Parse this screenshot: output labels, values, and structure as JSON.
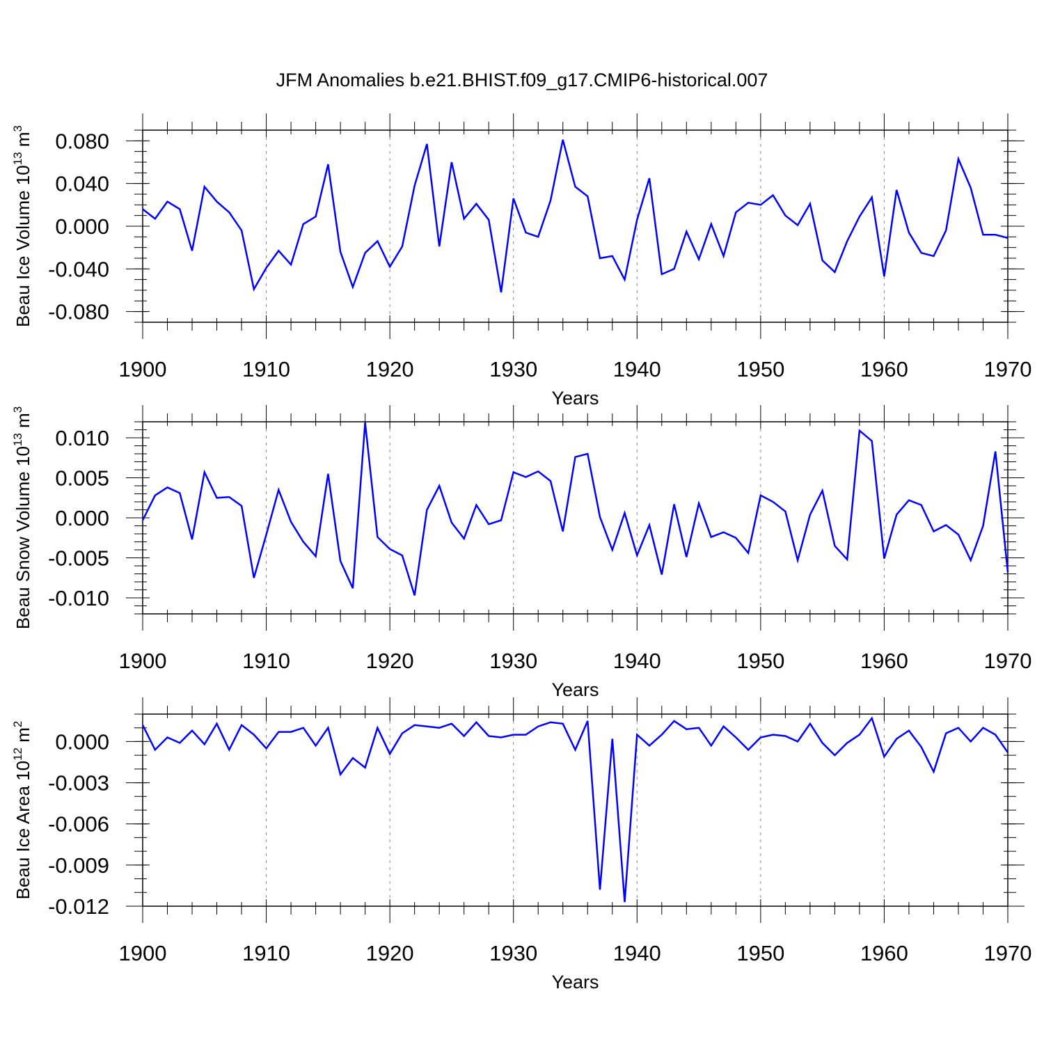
{
  "figure": {
    "title": "JFM Anomalies b.e21.BHIST.f09_g17.CMIP6-historical.007",
    "line_color": "#0000ff",
    "grid_color": "#888888"
  },
  "chart_data": [
    {
      "type": "line",
      "ylabel": "Beau Ice Volume 10",
      "ylabel_exp": "13",
      "ylabel_unit": " m",
      "ylabel_unit_exp": "3",
      "xlabel": "Years",
      "xlim": [
        1900,
        1970
      ],
      "ylim": [
        -0.09,
        0.09
      ],
      "yticks": [
        -0.08,
        -0.04,
        0.0,
        0.04,
        0.08
      ],
      "ytick_labels": [
        "-0.080",
        "-0.040",
        "0.000",
        "0.040",
        "0.080"
      ],
      "yminor_step": 0.01,
      "xticks": [
        1900,
        1910,
        1920,
        1930,
        1940,
        1950,
        1960,
        1970
      ],
      "xtick_labels": [
        "1900",
        "1910",
        "1920",
        "1930",
        "1940",
        "1950",
        "1960",
        "1970"
      ],
      "grid": "vertical dashed at decades",
      "x_start": 1900,
      "values": [
        0.016,
        0.007,
        0.023,
        0.016,
        -0.023,
        0.037,
        0.023,
        0.013,
        -0.004,
        -0.059,
        -0.039,
        -0.023,
        -0.036,
        0.002,
        0.009,
        0.058,
        -0.024,
        -0.057,
        -0.025,
        -0.014,
        -0.038,
        -0.019,
        0.038,
        0.077,
        -0.019,
        0.06,
        0.007,
        0.021,
        0.006,
        -0.062,
        0.026,
        -0.006,
        -0.01,
        0.024,
        0.081,
        0.037,
        0.028,
        -0.03,
        -0.028,
        -0.05,
        0.006,
        0.045,
        -0.045,
        -0.04,
        -0.005,
        -0.031,
        0.002,
        -0.028,
        0.013,
        0.022,
        0.02,
        0.029,
        0.01,
        0.001,
        0.021,
        -0.032,
        -0.043,
        -0.014,
        0.009,
        0.027,
        -0.047,
        0.034,
        -0.006,
        -0.025,
        -0.028,
        -0.004,
        0.063,
        0.036,
        -0.008,
        -0.008,
        -0.011
      ]
    },
    {
      "type": "line",
      "ylabel": "Beau Snow Volume 10",
      "ylabel_exp": "13",
      "ylabel_unit": " m",
      "ylabel_unit_exp": "3",
      "xlabel": "Years",
      "xlim": [
        1900,
        1970
      ],
      "ylim": [
        -0.012,
        0.012
      ],
      "yticks": [
        -0.01,
        -0.005,
        0.0,
        0.005,
        0.01
      ],
      "ytick_labels": [
        "-0.010",
        "-0.005",
        "0.000",
        "0.005",
        "0.010"
      ],
      "yminor_step": 0.001,
      "xticks": [
        1900,
        1910,
        1920,
        1930,
        1940,
        1950,
        1960,
        1970
      ],
      "xtick_labels": [
        "1900",
        "1910",
        "1920",
        "1930",
        "1940",
        "1950",
        "1960",
        "1970"
      ],
      "grid": "vertical dashed at decades",
      "x_start": 1900,
      "values": [
        -0.0003,
        0.0028,
        0.0038,
        0.0031,
        -0.0027,
        0.0057,
        0.0025,
        0.0026,
        0.0015,
        -0.0075,
        -0.0021,
        0.0035,
        -0.0005,
        -0.003,
        -0.0048,
        0.0055,
        -0.0054,
        -0.0088,
        0.0119,
        -0.0024,
        -0.0039,
        -0.0047,
        -0.0097,
        0.001,
        0.004,
        -0.0006,
        -0.0026,
        0.0016,
        -0.0008,
        -0.0003,
        0.0057,
        0.0051,
        0.0058,
        0.0046,
        -0.0017,
        0.0076,
        0.008,
        0.0001,
        -0.004,
        0.0006,
        -0.0047,
        -0.0009,
        -0.0071,
        0.0017,
        -0.0049,
        0.0018,
        -0.0024,
        -0.0018,
        -0.0025,
        -0.0044,
        0.0028,
        0.002,
        0.0008,
        -0.0053,
        0.0004,
        0.0034,
        -0.0035,
        -0.0052,
        0.0109,
        0.0096,
        -0.0051,
        0.0004,
        0.0022,
        0.0016,
        -0.0017,
        -0.0009,
        -0.0021,
        -0.0053,
        -0.001,
        0.0083,
        -0.0068
      ]
    },
    {
      "type": "line",
      "ylabel": "Beau Ice Area 10",
      "ylabel_exp": "12",
      "ylabel_unit": " m",
      "ylabel_unit_exp": "2",
      "xlabel": "Years",
      "xlim": [
        1900,
        1970
      ],
      "ylim": [
        -0.012,
        0.002
      ],
      "yticks": [
        -0.012,
        -0.009,
        -0.006,
        -0.003,
        0.0
      ],
      "ytick_labels": [
        "-0.012",
        "-0.009",
        "-0.006",
        "-0.003",
        "0.000"
      ],
      "yminor_step": 0.001,
      "xticks": [
        1900,
        1910,
        1920,
        1930,
        1940,
        1950,
        1960,
        1970
      ],
      "xtick_labels": [
        "1900",
        "1910",
        "1920",
        "1930",
        "1940",
        "1950",
        "1960",
        "1970"
      ],
      "grid": "vertical dashed at decades",
      "x_start": 1900,
      "values": [
        0.0012,
        -0.0006,
        0.0003,
        -0.0001,
        0.0008,
        -0.0002,
        0.0013,
        -0.0006,
        0.0012,
        0.0005,
        -0.0005,
        0.0007,
        0.0007,
        0.001,
        -0.0003,
        0.001,
        -0.0024,
        -0.0012,
        -0.0019,
        0.001,
        -0.0009,
        0.0006,
        0.0012,
        0.0011,
        0.001,
        0.0013,
        0.0004,
        0.0014,
        0.0004,
        0.0003,
        0.0005,
        0.0005,
        0.0011,
        0.0014,
        0.0013,
        -0.0006,
        0.0015,
        -0.0108,
        0.0002,
        -0.0117,
        0.0005,
        -0.0003,
        0.0005,
        0.0015,
        0.0009,
        0.001,
        -0.0003,
        0.0011,
        0.0003,
        -0.0006,
        0.0003,
        0.0005,
        0.0004,
        0.0,
        0.0013,
        -0.0001,
        -0.001,
        -0.0001,
        0.0005,
        0.0017,
        -0.0011,
        0.0002,
        0.0008,
        -0.0004,
        -0.0022,
        0.0006,
        0.001,
        0.0,
        0.001,
        0.0005,
        -0.0008
      ]
    }
  ]
}
